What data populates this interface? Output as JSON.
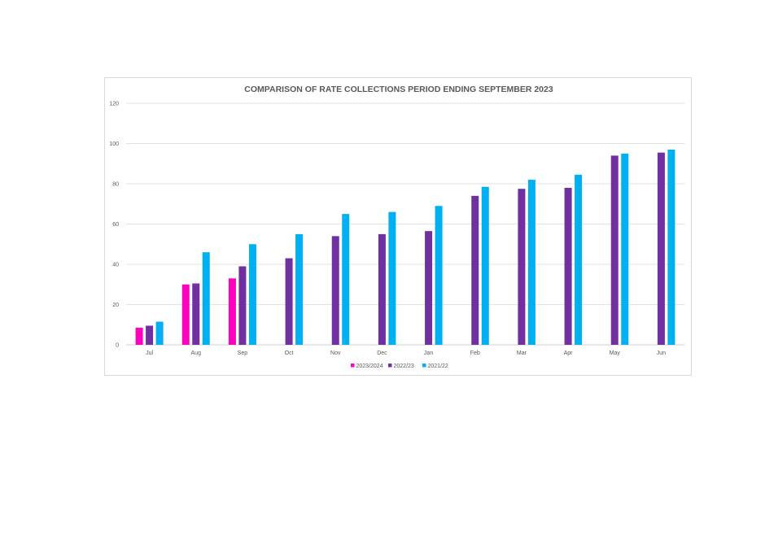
{
  "chart_data": {
    "type": "bar",
    "title": "COMPARISON OF RATE COLLECTIONS PERIOD ENDING SEPTEMBER 2023",
    "xlabel": "",
    "ylabel": "",
    "ylim": [
      0,
      120
    ],
    "yticks": [
      0,
      20,
      40,
      60,
      80,
      100,
      120
    ],
    "grid": true,
    "legend_position": "bottom",
    "categories": [
      "Jul",
      "Aug",
      "Sep",
      "Oct",
      "Nov",
      "Dec",
      "Jan",
      "Feb",
      "Mar",
      "Apr",
      "May",
      "Jun"
    ],
    "series": [
      {
        "name": "2023/2024",
        "color": "#ff00bf",
        "values": [
          8.5,
          30,
          33,
          null,
          null,
          null,
          null,
          null,
          null,
          null,
          null,
          null
        ]
      },
      {
        "name": "2022/23",
        "color": "#7030a0",
        "values": [
          9.5,
          30.5,
          39,
          43,
          54,
          55,
          56.5,
          74,
          77.5,
          78,
          94,
          95.5
        ]
      },
      {
        "name": "2021/22",
        "color": "#00b0f0",
        "values": [
          11.5,
          46,
          50,
          55,
          65,
          66,
          69,
          78.5,
          82,
          84.5,
          95,
          97
        ]
      }
    ]
  }
}
